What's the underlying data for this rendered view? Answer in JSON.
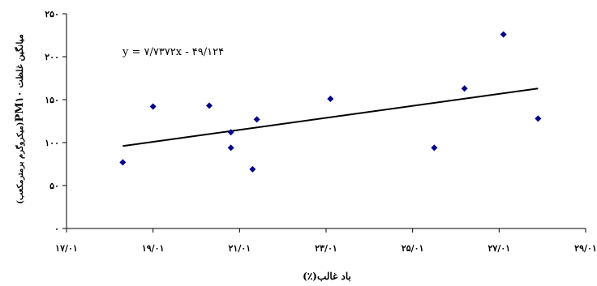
{
  "chart_data": {
    "type": "scatter",
    "title": "",
    "xlabel": "باد غالب(٪)",
    "ylabel_parts": [
      "میانگین غلظت",
      "PM۱۰",
      "(میکروگرم برمترمکعب)"
    ],
    "xlim": [
      17,
      29
    ],
    "ylim": [
      0,
      250
    ],
    "x_ticks": [
      17,
      19,
      21,
      23,
      25,
      27,
      29
    ],
    "x_tick_labels": [
      "۱۷/۰۱",
      "۱۹/۰۱",
      "۲۱/۰۱",
      "۲۳/۰۱",
      "۲۵/۰۱",
      "۲۷/۰۱",
      "۲۹/۰۱"
    ],
    "y_ticks": [
      0,
      50,
      100,
      150,
      200,
      250
    ],
    "y_tick_labels": [
      "۰",
      "۵۰",
      "۱۰۰",
      "۱۵۰",
      "۲۰۰",
      "۲۵۰"
    ],
    "points": [
      {
        "x": 18.3,
        "y": 77
      },
      {
        "x": 19.0,
        "y": 142
      },
      {
        "x": 20.3,
        "y": 143
      },
      {
        "x": 20.8,
        "y": 112
      },
      {
        "x": 20.8,
        "y": 94
      },
      {
        "x": 21.3,
        "y": 69
      },
      {
        "x": 21.4,
        "y": 127
      },
      {
        "x": 23.1,
        "y": 151
      },
      {
        "x": 25.5,
        "y": 94
      },
      {
        "x": 26.2,
        "y": 163
      },
      {
        "x": 27.1,
        "y": 226
      },
      {
        "x": 27.9,
        "y": 128
      }
    ],
    "trendline": {
      "x1": 18.3,
      "y1": 96,
      "x2": 27.9,
      "y2": 163
    },
    "equation": "y = ۷/۷۳۷۲x - ۴۹/۱۲۴",
    "marker": "diamond",
    "colors": {
      "marker": "#00008b",
      "trendline": "#000000"
    },
    "grid": false,
    "legend": "none"
  }
}
